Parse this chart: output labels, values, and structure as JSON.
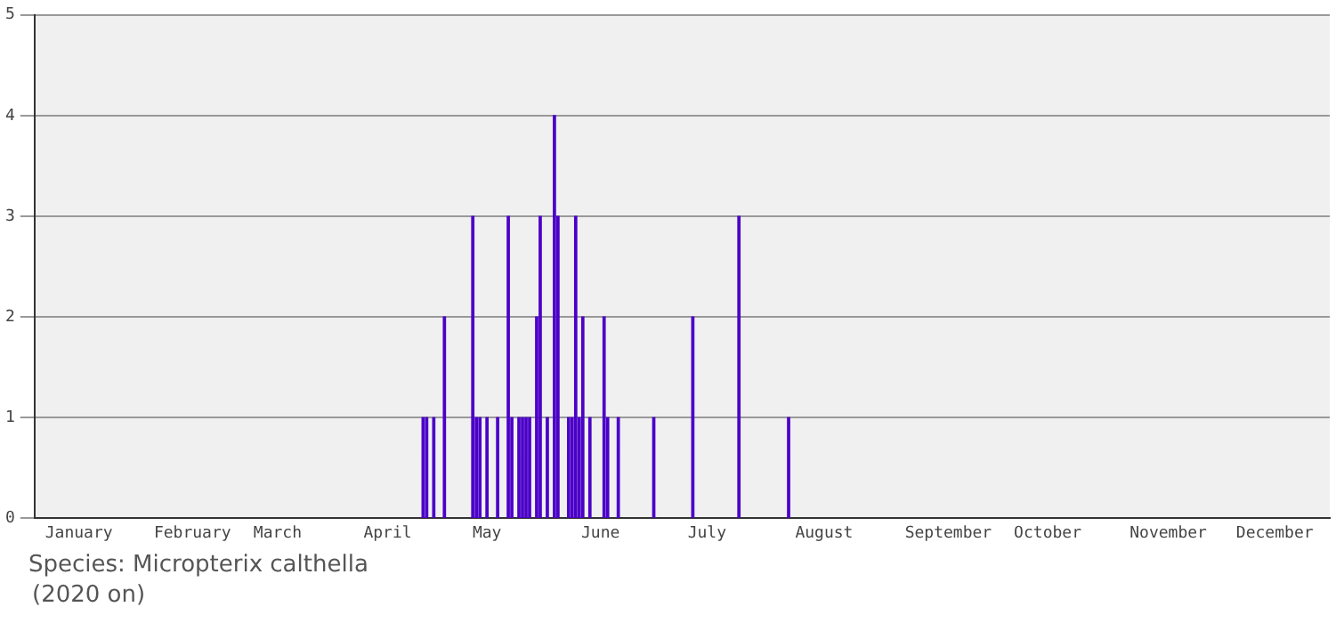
{
  "chart_data": {
    "type": "bar",
    "title": "Species: Micropterix calthella",
    "subtitle": "(2020 on)",
    "x": [
      "--04-20",
      "--04-21",
      "--04-23",
      "--04-26",
      "--05-04",
      "--05-05",
      "--05-06",
      "--05-08",
      "--05-11",
      "--05-14",
      "--05-15",
      "--05-17",
      "--05-18",
      "--05-19",
      "--05-20",
      "--05-22",
      "--05-23",
      "--05-25",
      "--05-27",
      "--05-28",
      "--05-31",
      "--06-01",
      "--06-02",
      "--06-03",
      "--06-04",
      "--06-06",
      "--06-10",
      "--06-11",
      "--06-14",
      "--06-24",
      "--07-05",
      "--07-18",
      "--08-01"
    ],
    "values": [
      1,
      1,
      1,
      2,
      3,
      1,
      1,
      1,
      1,
      3,
      1,
      1,
      1,
      1,
      1,
      2,
      3,
      1,
      4,
      3,
      1,
      1,
      3,
      1,
      2,
      1,
      2,
      1,
      1,
      1,
      2,
      3,
      1
    ],
    "color": "#4b00c8",
    "xlim": [
      "--01-01",
      "--12-31"
    ],
    "xticks": [
      {
        "value": "--01-13",
        "label": "January"
      },
      {
        "value": "--02-14",
        "label": "February"
      },
      {
        "value": "--03-10",
        "label": "March"
      },
      {
        "value": "--04-10",
        "label": "April"
      },
      {
        "value": "--05-08",
        "label": "May"
      },
      {
        "value": "--06-09",
        "label": "June"
      },
      {
        "value": "--07-09",
        "label": "July"
      },
      {
        "value": "--08-11",
        "label": "August"
      },
      {
        "value": "--09-15",
        "label": "September"
      },
      {
        "value": "--10-13",
        "label": "October"
      },
      {
        "value": "--11-16",
        "label": "November"
      },
      {
        "value": "--12-16",
        "label": "December"
      }
    ],
    "ylim": [
      0,
      5
    ],
    "yticks": [
      0,
      1,
      2,
      3,
      4,
      5
    ],
    "grid": "y",
    "legend": false
  }
}
